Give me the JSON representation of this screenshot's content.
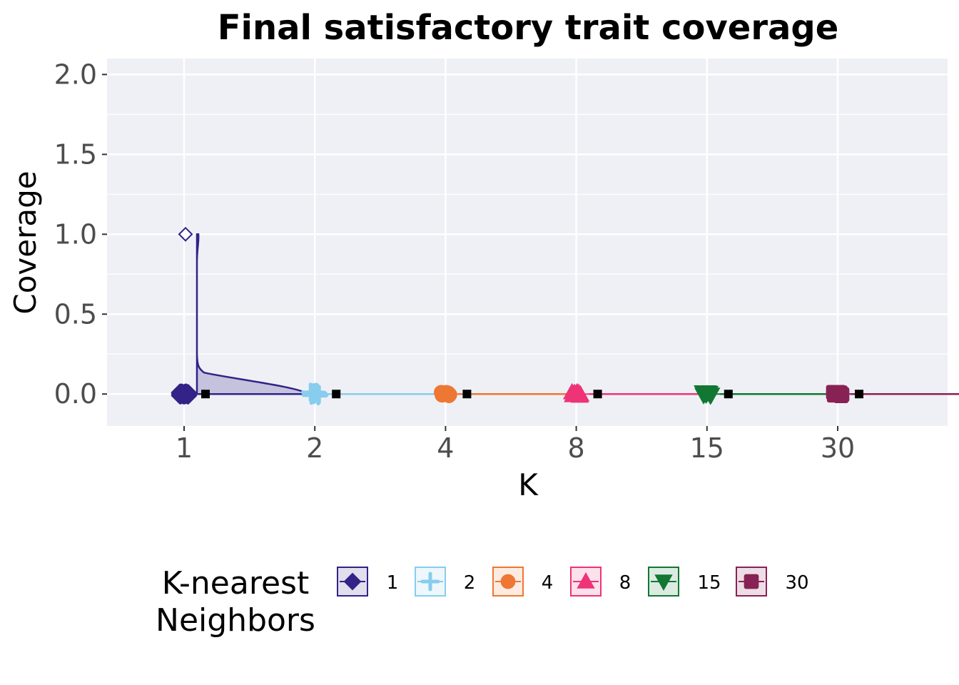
{
  "chart_data": {
    "type": "raincloud",
    "title": "Final satisfactory trait coverage",
    "xlabel": "K",
    "ylabel": "Coverage",
    "categories": [
      "1",
      "2",
      "4",
      "8",
      "15",
      "30"
    ],
    "ylim": [
      -0.2,
      2.1
    ],
    "yticks": [
      "0.0",
      "0.5",
      "1.0",
      "1.5",
      "2.0"
    ],
    "ytick_values": [
      0,
      0.5,
      1.0,
      1.5,
      2.0
    ],
    "grid": true,
    "legend_position": "bottom",
    "legend_title": "K-nearest\nNeighbors",
    "series": [
      {
        "name": "1",
        "color": "#332288",
        "shape": "diamond",
        "points": [
          0,
          0,
          0,
          0,
          0,
          0,
          0,
          0,
          0,
          0,
          0,
          0,
          0,
          0,
          0,
          0,
          0,
          0,
          0,
          0,
          0,
          0,
          0,
          0,
          0,
          0,
          0,
          0,
          0,
          0,
          0,
          0,
          0,
          0,
          0,
          0,
          0,
          0,
          0,
          0,
          0,
          0,
          0,
          0,
          0,
          0,
          0,
          0,
          0,
          1
        ],
        "outliers": [
          1.0
        ],
        "mean": 0.02,
        "median": 0.0
      },
      {
        "name": "2",
        "color": "#88CCEE",
        "shape": "plus",
        "points": [
          0,
          0,
          0,
          0,
          0,
          0,
          0,
          0,
          0,
          0
        ],
        "outliers": [],
        "mean": 0.0,
        "median": 0.0
      },
      {
        "name": "4",
        "color": "#EE7733",
        "shape": "circle",
        "points": [
          0,
          0,
          0,
          0,
          0,
          0,
          0,
          0,
          0,
          0
        ],
        "outliers": [],
        "mean": 0.0,
        "median": 0.0
      },
      {
        "name": "8",
        "color": "#EE3377",
        "shape": "triangle-up",
        "points": [
          0,
          0,
          0,
          0,
          0,
          0,
          0,
          0,
          0,
          0
        ],
        "outliers": [],
        "mean": 0.0,
        "median": 0.0
      },
      {
        "name": "15",
        "color": "#117733",
        "shape": "triangle-down",
        "points": [
          0,
          0,
          0,
          0,
          0,
          0,
          0,
          0,
          0,
          0
        ],
        "outliers": [],
        "mean": 0.0,
        "median": 0.0
      },
      {
        "name": "30",
        "color": "#882255",
        "shape": "square",
        "points": [
          0,
          0,
          0,
          0,
          0,
          0,
          0,
          0,
          0,
          0
        ],
        "outliers": [],
        "mean": 0.0,
        "median": 0.0
      }
    ]
  }
}
